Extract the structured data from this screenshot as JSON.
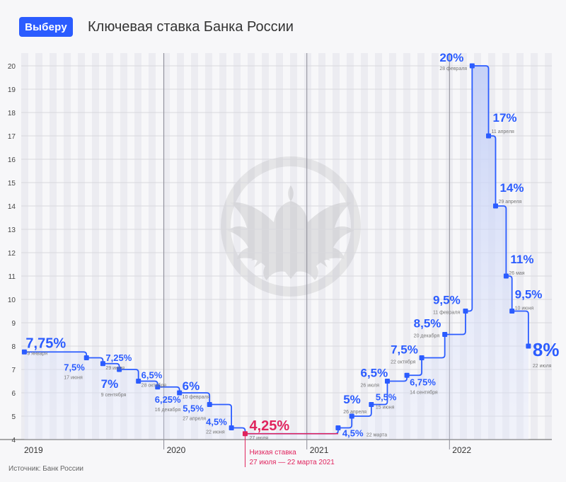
{
  "header": {
    "logo_label": "Выберу",
    "title": "Ключевая ставка Банка России"
  },
  "footer": {
    "source": "Источник: Банк России"
  },
  "colors": {
    "line": "#2b5cff",
    "label": "#2b5cff",
    "date": "#777777",
    "highlight": "#e0245e",
    "grid": "#d8d8dd",
    "fill_top": "#c9d3f7"
  },
  "chart_data": {
    "type": "line",
    "step": true,
    "title": "Ключевая ставка Банка России",
    "xlabel": "",
    "ylabel": "",
    "ylim": [
      4,
      20
    ],
    "yticks": [
      4,
      5,
      6,
      7,
      8,
      9,
      10,
      11,
      12,
      13,
      14,
      15,
      16,
      17,
      18,
      19,
      20
    ],
    "xlim": [
      "2019-01-01",
      "2022-09-20"
    ],
    "x_ticks": [
      {
        "label": "2019",
        "date": "2019-01-01"
      },
      {
        "label": "2020",
        "date": "2020-01-01"
      },
      {
        "label": "2021",
        "date": "2021-01-01"
      },
      {
        "label": "2022",
        "date": "2022-01-01"
      }
    ],
    "points": [
      {
        "date": "2019-01-09",
        "value": 7.75,
        "value_label": "7,75%",
        "date_label": "9 января"
      },
      {
        "date": "2019-06-17",
        "value": 7.5,
        "value_label": "7,5%",
        "date_label": "17 июня"
      },
      {
        "date": "2019-07-29",
        "value": 7.25,
        "value_label": "7,25%",
        "date_label": "29 июля"
      },
      {
        "date": "2019-09-09",
        "value": 7,
        "value_label": "7%",
        "date_label": "9 сентября"
      },
      {
        "date": "2019-10-28",
        "value": 6.5,
        "value_label": "6,5%",
        "date_label": "28 октября"
      },
      {
        "date": "2019-12-16",
        "value": 6.25,
        "value_label": "6,25%",
        "date_label": "16 декабря"
      },
      {
        "date": "2020-02-10",
        "value": 6,
        "value_label": "6%",
        "date_label": "10 февраля"
      },
      {
        "date": "2020-04-27",
        "value": 5.5,
        "value_label": "5,5%",
        "date_label": "27 апреля"
      },
      {
        "date": "2020-06-22",
        "value": 4.5,
        "value_label": "4,5%",
        "date_label": "22 июня"
      },
      {
        "date": "2020-07-27",
        "value": 4.25,
        "value_label": "4,25%",
        "date_label": "27 июля",
        "highlight": true
      },
      {
        "date": "2021-03-22",
        "value": 4.5,
        "value_label": "4,5%",
        "date_label": "22 марта"
      },
      {
        "date": "2021-04-26",
        "value": 5,
        "value_label": "5%",
        "date_label": "26 апреля"
      },
      {
        "date": "2021-06-15",
        "value": 5.5,
        "value_label": "5,5%",
        "date_label": "15 июня"
      },
      {
        "date": "2021-07-26",
        "value": 6.5,
        "value_label": "6,5%",
        "date_label": "26 июля"
      },
      {
        "date": "2021-09-14",
        "value": 6.75,
        "value_label": "6,75%",
        "date_label": "14 сентября"
      },
      {
        "date": "2021-10-22",
        "value": 7.5,
        "value_label": "7,5%",
        "date_label": "22 октября"
      },
      {
        "date": "2021-12-20",
        "value": 8.5,
        "value_label": "8,5%",
        "date_label": "20 декабря"
      },
      {
        "date": "2022-02-11",
        "value": 9.5,
        "value_label": "9,5%",
        "date_label": "11 февраля"
      },
      {
        "date": "2022-02-28",
        "value": 20,
        "value_label": "20%",
        "date_label": "28 февраля"
      },
      {
        "date": "2022-04-11",
        "value": 17,
        "value_label": "17%",
        "date_label": "11 апреля"
      },
      {
        "date": "2022-04-29",
        "value": 14,
        "value_label": "14%",
        "date_label": "29 апреля"
      },
      {
        "date": "2022-05-26",
        "value": 11,
        "value_label": "11%",
        "date_label": "26 мая"
      },
      {
        "date": "2022-06-10",
        "value": 9.5,
        "value_label": "9,5%",
        "date_label": "10 июня"
      },
      {
        "date": "2022-07-22",
        "value": 8,
        "value_label": "8%",
        "date_label": "22 июля"
      }
    ],
    "annotation": {
      "text_line1": "Низкая ставка",
      "text_line2": "27 июля — 22 марта 2021",
      "start": "2020-07-27",
      "end": "2021-03-22"
    }
  }
}
